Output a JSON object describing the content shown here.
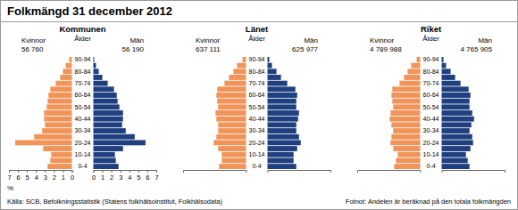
{
  "header": {
    "title": "Folkmängd 31 december 2012"
  },
  "footer": {
    "source": "Källa: SCB, Befolkningsstatistik (Statens folkhälsoinstitut, Folkhälsodata)",
    "footnote": "Fotnot: Andelen är beräknad på den totala folkmängden"
  },
  "chart_data": [
    {
      "type": "bar",
      "orientation": "horizontal",
      "title": "Kommunen",
      "ylabel": "Ålder",
      "xlabel": "%",
      "categories": [
        "0-4",
        null,
        "10-14",
        null,
        "20-24",
        null,
        "30-34",
        null,
        "40-44",
        null,
        "50-54",
        null,
        "60-64",
        null,
        "70-74",
        null,
        "80-84",
        null,
        "90-94"
      ],
      "xlim": [
        0,
        7
      ],
      "xticks": [
        0,
        1,
        2,
        3,
        4,
        5,
        6,
        7
      ],
      "series": [
        {
          "name": "Kvinnor",
          "color": "#f0945a",
          "total": {
            "value": 56760,
            "label": "56 760"
          },
          "values": [
            2.7,
            2.4,
            2.3,
            3.2,
            6.3,
            4.2,
            3.3,
            3.0,
            3.1,
            3.1,
            2.8,
            2.7,
            2.6,
            2.4,
            1.8,
            1.3,
            1.0,
            0.7,
            0.3
          ]
        },
        {
          "name": "Män",
          "color": "#1f3f7f",
          "total": {
            "value": 56190,
            "label": "56 190"
          },
          "values": [
            2.8,
            2.5,
            2.4,
            3.3,
            5.8,
            4.6,
            3.6,
            3.2,
            3.3,
            3.3,
            2.9,
            2.7,
            2.6,
            2.3,
            1.6,
            1.0,
            0.6,
            0.3,
            0.1
          ]
        }
      ]
    },
    {
      "type": "bar",
      "orientation": "horizontal",
      "title": "Länet",
      "ylabel": "Ålder",
      "tick_labels": false,
      "categories": [
        "0-4",
        null,
        "10-14",
        null,
        "20-24",
        null,
        "30-34",
        null,
        "40-44",
        null,
        "50-54",
        null,
        "60-64",
        null,
        "70-74",
        null,
        "80-84",
        null,
        "90-94"
      ],
      "xlim": [
        0,
        7
      ],
      "series": [
        {
          "name": "Kvinnor",
          "color": "#f0945a",
          "total": {
            "value": 637111,
            "label": "637 111"
          },
          "values": [
            3.0,
            2.7,
            2.7,
            3.1,
            3.6,
            3.3,
            3.1,
            3.1,
            3.3,
            3.4,
            3.1,
            3.2,
            3.3,
            3.2,
            2.4,
            1.9,
            1.4,
            1.0,
            0.4
          ]
        },
        {
          "name": "Män",
          "color": "#1f3f7f",
          "total": {
            "value": 625977,
            "label": "625 977"
          },
          "values": [
            3.2,
            2.9,
            2.9,
            3.3,
            3.7,
            3.5,
            3.2,
            3.2,
            3.4,
            3.5,
            3.2,
            3.2,
            3.3,
            3.1,
            2.2,
            1.5,
            1.0,
            0.5,
            0.2
          ]
        }
      ]
    },
    {
      "type": "bar",
      "orientation": "horizontal",
      "title": "Riket",
      "ylabel": "Ålder",
      "tick_labels": false,
      "categories": [
        "0-4",
        null,
        "10-14",
        null,
        "20-24",
        null,
        "30-34",
        null,
        "40-44",
        null,
        "50-54",
        null,
        "60-64",
        null,
        "70-74",
        null,
        "80-84",
        null,
        "90-94"
      ],
      "xlim": [
        0,
        7
      ],
      "series": [
        {
          "name": "Kvinnor",
          "color": "#f0945a",
          "total": {
            "value": 4789988,
            "label": "4 789 988"
          },
          "values": [
            2.9,
            2.7,
            2.5,
            3.0,
            3.3,
            3.2,
            3.0,
            3.2,
            3.4,
            3.3,
            3.0,
            3.1,
            3.2,
            3.1,
            2.3,
            1.8,
            1.4,
            1.0,
            0.4
          ]
        },
        {
          "name": "Män",
          "color": "#1f3f7f",
          "total": {
            "value": 4765905,
            "label": "4 765 905"
          },
          "values": [
            3.1,
            2.9,
            2.7,
            3.2,
            3.5,
            3.4,
            3.1,
            3.3,
            3.6,
            3.4,
            3.1,
            3.1,
            3.2,
            3.0,
            2.1,
            1.5,
            1.0,
            0.5,
            0.2
          ]
        }
      ]
    }
  ]
}
